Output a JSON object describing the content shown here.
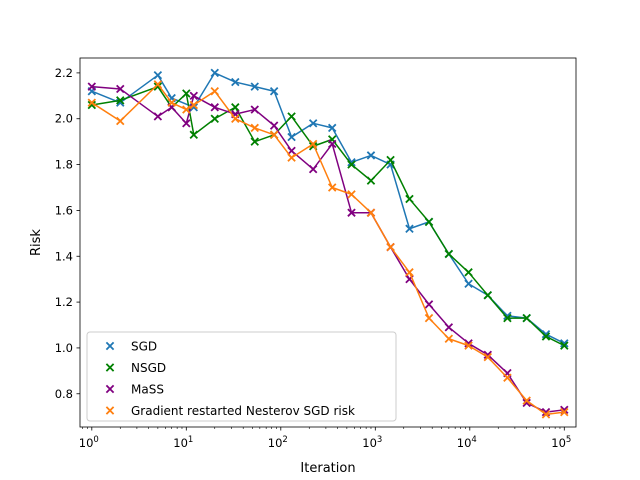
{
  "chart_data": {
    "type": "line",
    "title": "",
    "xlabel": "Iteration",
    "ylabel": "Risk",
    "xscale": "log",
    "xlim": [
      0.75,
      133000
    ],
    "ylim": [
      0.655,
      2.265
    ],
    "grid": false,
    "legend_placement": "lower-left",
    "x_ticks": [
      {
        "value": 1,
        "base": "10",
        "exp": "0"
      },
      {
        "value": 10,
        "base": "10",
        "exp": "1"
      },
      {
        "value": 100,
        "base": "10",
        "exp": "2"
      },
      {
        "value": 1000,
        "base": "10",
        "exp": "3"
      },
      {
        "value": 10000,
        "base": "10",
        "exp": "4"
      },
      {
        "value": 100000,
        "base": "10",
        "exp": "5"
      }
    ],
    "y_ticks": [
      "0.8",
      "1.0",
      "1.2",
      "1.4",
      "1.6",
      "1.8",
      "2.0",
      "2.2"
    ],
    "series": [
      {
        "name": "SGD",
        "color": "#1f77b4",
        "x": [
          1,
          2,
          5,
          7,
          12,
          20,
          33,
          53,
          85,
          130,
          220,
          350,
          560,
          900,
          1450,
          2300,
          3700,
          6000,
          9700,
          15500,
          25000,
          40000,
          64000,
          100000
        ],
        "y": [
          2.12,
          2.07,
          2.19,
          2.09,
          2.05,
          2.2,
          2.16,
          2.14,
          2.12,
          1.92,
          1.98,
          1.96,
          1.81,
          1.84,
          1.8,
          1.52,
          1.55,
          1.41,
          1.28,
          1.23,
          1.14,
          1.13,
          1.06,
          1.02
        ]
      },
      {
        "name": "NSGD",
        "color": "#008000",
        "x": [
          1,
          2,
          5,
          7,
          10,
          12,
          20,
          33,
          53,
          85,
          130,
          220,
          350,
          560,
          900,
          1450,
          2300,
          3700,
          6000,
          9700,
          15500,
          25000,
          40000,
          64000,
          100000
        ],
        "y": [
          2.06,
          2.08,
          2.14,
          2.05,
          2.11,
          1.93,
          2.0,
          2.05,
          1.9,
          1.93,
          2.01,
          1.88,
          1.91,
          1.8,
          1.73,
          1.82,
          1.65,
          1.55,
          1.41,
          1.33,
          1.23,
          1.13,
          1.13,
          1.05,
          1.01
        ]
      },
      {
        "name": "MaSS",
        "color": "#800080",
        "x": [
          1,
          2,
          5,
          7,
          10,
          12,
          20,
          33,
          53,
          85,
          130,
          220,
          350,
          560,
          900,
          1450,
          2300,
          3700,
          6000,
          9700,
          15500,
          25000,
          40000,
          64000,
          100000
        ],
        "y": [
          2.14,
          2.13,
          2.01,
          2.05,
          1.98,
          2.1,
          2.05,
          2.02,
          2.04,
          1.97,
          1.86,
          1.78,
          1.89,
          1.59,
          1.59,
          1.44,
          1.3,
          1.19,
          1.09,
          1.02,
          0.97,
          0.89,
          0.76,
          0.72,
          0.73
        ]
      },
      {
        "name": "Gradient restarted Nesterov SGD risk",
        "color": "#ff7f0e",
        "x": [
          1,
          2,
          5,
          7,
          10,
          12,
          20,
          33,
          53,
          85,
          130,
          220,
          350,
          560,
          900,
          1450,
          2300,
          3700,
          6000,
          9700,
          15500,
          25000,
          40000,
          64000,
          100000
        ],
        "y": [
          2.07,
          1.99,
          2.15,
          2.07,
          2.04,
          2.06,
          2.12,
          2.0,
          1.96,
          1.93,
          1.83,
          1.89,
          1.7,
          1.67,
          1.59,
          1.44,
          1.33,
          1.13,
          1.04,
          1.01,
          0.96,
          0.87,
          0.77,
          0.71,
          0.72
        ]
      }
    ]
  }
}
